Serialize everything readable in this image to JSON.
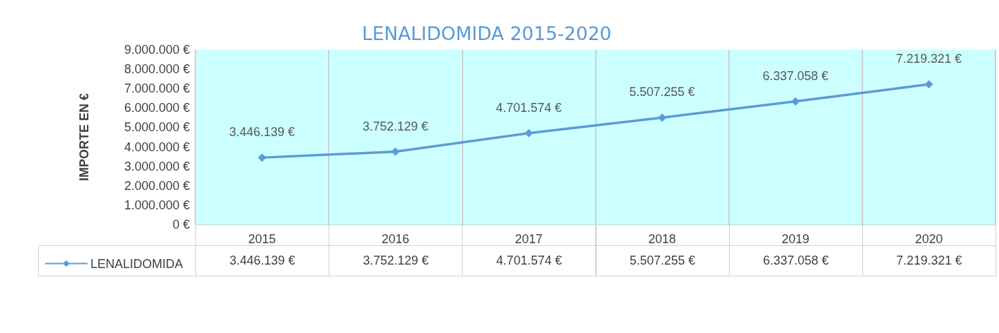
{
  "chart_data": {
    "type": "line",
    "title": "LENALIDOMIDA 2015-2020",
    "ylabel": "IMPORTE EN €",
    "categories": [
      "2015",
      "2016",
      "2017",
      "2018",
      "2019",
      "2020"
    ],
    "series": [
      {
        "name": "LENALIDOMIDA",
        "color": "#5b9bd5",
        "values": [
          3446139,
          3752129,
          4701574,
          5507255,
          6337058,
          7219321
        ],
        "value_labels": [
          "3.446.139 €",
          "3.752.129 €",
          "4.701.574 €",
          "5.507.255 €",
          "6.337.058 €",
          "7.219.321 €"
        ]
      }
    ],
    "ylim": [
      0,
      9000000
    ],
    "yticks": [
      {
        "value": 0,
        "label": "0 €"
      },
      {
        "value": 1000000,
        "label": "1.000.000 €"
      },
      {
        "value": 2000000,
        "label": "2.000.000 €"
      },
      {
        "value": 3000000,
        "label": "3.000.000 €"
      },
      {
        "value": 4000000,
        "label": "4.000.000 €"
      },
      {
        "value": 5000000,
        "label": "5.000.000 €"
      },
      {
        "value": 6000000,
        "label": "6.000.000 €"
      },
      {
        "value": 7000000,
        "label": "7.000.000 €"
      },
      {
        "value": 8000000,
        "label": "8.000.000 €"
      },
      {
        "value": 9000000,
        "label": "9.000.000 €"
      }
    ],
    "grid": "x",
    "legend": "bottom",
    "marker": "diamond",
    "line_style": "solid"
  }
}
